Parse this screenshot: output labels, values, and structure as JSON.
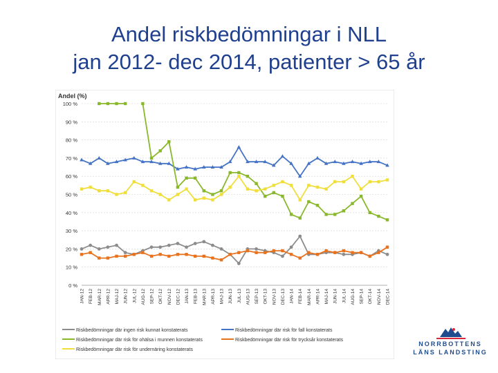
{
  "slide": {
    "title_line1": "Andel riskbedömningar i NLL",
    "title_line2": "jan 2012- dec 2014, patienter > 65 år"
  },
  "brand": {
    "line1": "NORRBOTTENS",
    "line2": "LÄNS LANDSTING"
  },
  "colors": {
    "blue": "#4472c4",
    "green": "#8ab82c",
    "yellow": "#f0de3a",
    "gray": "#8c8c8c",
    "orange": "#e8731f",
    "grid": "#cfcfcf",
    "axis_text": "#333333",
    "brand_red": "#d6273d",
    "brand_blue": "#1f4b8f"
  },
  "chart_data": {
    "type": "line",
    "ylabel": "Andel (%)",
    "ylim": [
      0,
      100
    ],
    "yticks": [
      "0 %",
      "10 %",
      "20 %",
      "30 %",
      "40 %",
      "50 %",
      "60 %",
      "70 %",
      "80 %",
      "90 %",
      "100 %"
    ],
    "categories": [
      "JAN-12",
      "FEB-12",
      "MAR-12",
      "APR-12",
      "MAJ-12",
      "JUN-12",
      "JUL-12",
      "AUG-12",
      "SEP-12",
      "OKT-12",
      "NOV-12",
      "DEC-12",
      "JAN-13",
      "FEB-13",
      "MAR-13",
      "APR-13",
      "MAJ-13",
      "JUN-13",
      "JUL-13",
      "AUG-13",
      "SEP-13",
      "OKT-13",
      "NOV-13",
      "DEC-13",
      "JAN-14",
      "FEB-14",
      "MAR-14",
      "APR-14",
      "MAJ-14",
      "JUN-14",
      "JUL-14",
      "AUG-14",
      "SEP-14",
      "OKT-14",
      "NOV-14",
      "DEC-14"
    ],
    "series": [
      {
        "name": "Riskbedömningar där ingen risk kunnat konstaterats",
        "color": "#8c8c8c",
        "marker": "circle",
        "values": [
          20,
          22,
          20,
          21,
          22,
          18,
          17,
          19,
          21,
          21,
          22,
          23,
          21,
          23,
          24,
          22,
          20,
          17,
          12,
          20,
          20,
          19,
          18,
          16,
          21,
          27,
          17,
          17,
          18,
          18,
          17,
          17,
          18,
          16,
          19,
          17
        ]
      },
      {
        "name": "Riskbedömningar där risk för fall konstaterats",
        "color": "#4472c4",
        "marker": "triangle",
        "values": [
          69,
          67,
          70,
          67,
          68,
          69,
          70,
          68,
          68,
          67,
          67,
          64,
          65,
          64,
          65,
          65,
          65,
          68,
          76,
          68,
          68,
          68,
          66,
          71,
          67,
          60,
          67,
          70,
          67,
          68,
          67,
          68,
          67,
          68,
          68,
          66
        ]
      },
      {
        "name": "Riskbedömningar där risk för ohälsa i munnen konstaterats",
        "color": "#8ab82c",
        "marker": "square",
        "values": [
          null,
          null,
          100,
          100,
          100,
          100,
          null,
          100,
          70,
          74,
          79,
          54,
          59,
          59,
          52,
          50,
          52,
          62,
          62,
          60,
          56,
          49,
          51,
          49,
          39,
          37,
          46,
          44,
          39,
          39,
          41,
          45,
          49,
          40,
          38,
          36
        ]
      },
      {
        "name": "Riskbedömningar där risk för trycksår konstaterats",
        "color": "#e8731f",
        "marker": "square",
        "values": [
          17,
          18,
          15,
          15,
          16,
          16,
          17,
          18,
          16,
          17,
          16,
          17,
          17,
          16,
          16,
          15,
          14,
          17,
          18,
          19,
          18,
          18,
          19,
          19,
          17,
          15,
          18,
          17,
          19,
          18,
          19,
          18,
          18,
          16,
          18,
          21
        ]
      },
      {
        "name": "Riskbedömningar där risk för undernäring konstaterats",
        "color": "#f0de3a",
        "marker": "square",
        "values": [
          53,
          54,
          52,
          52,
          50,
          51,
          57,
          55,
          52,
          50,
          47,
          50,
          53,
          47,
          48,
          47,
          50,
          54,
          60,
          53,
          52,
          53,
          55,
          57,
          55,
          47,
          55,
          54,
          53,
          57,
          57,
          60,
          53,
          57,
          57,
          58
        ]
      }
    ],
    "legend": [
      {
        "label": "Riskbedömningar där ingen risk kunnat konstaterats",
        "color": "#8c8c8c"
      },
      {
        "label": "Riskbedömningar där risk för fall konstaterats",
        "color": "#4472c4"
      },
      {
        "label": "Riskbedömningar där risk för ohälsa i munnen konstaterats",
        "color": "#8ab82c"
      },
      {
        "label": "Riskbedömningar där risk för trycksår konstaterats",
        "color": "#e8731f"
      },
      {
        "label": "Riskbedömningar där risk för undernäring konstaterats",
        "color": "#f0de3a"
      }
    ],
    "legend_position": "bottom"
  }
}
